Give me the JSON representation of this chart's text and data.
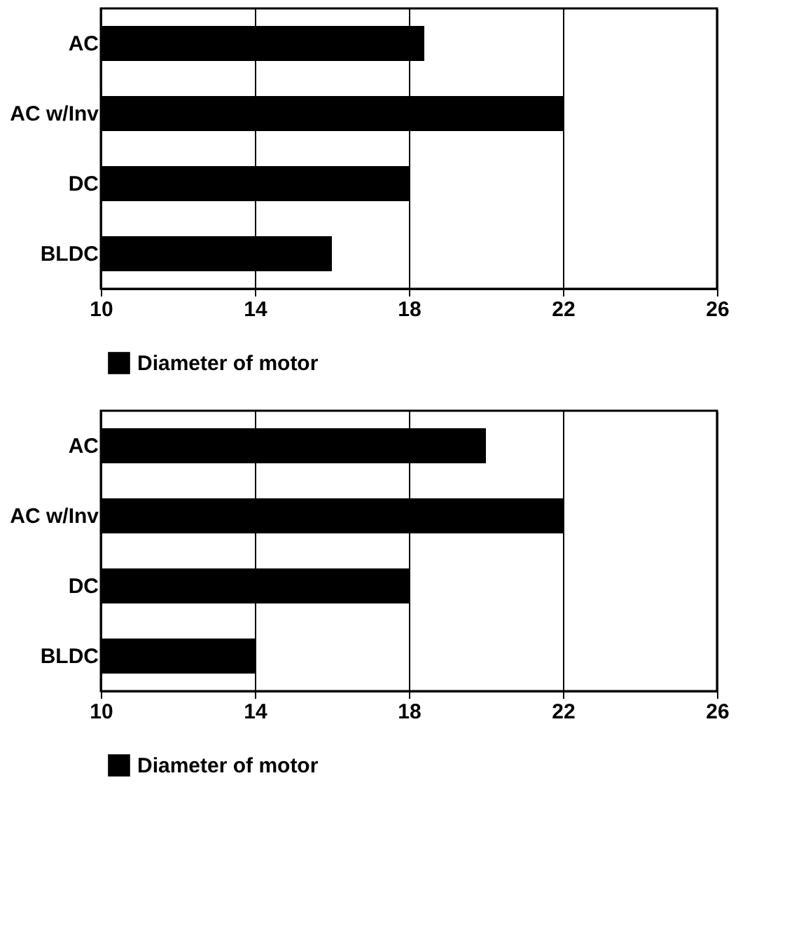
{
  "chart_data": [
    {
      "type": "bar",
      "orientation": "horizontal",
      "categories": [
        "AC",
        "AC w/Inv",
        "DC",
        "BLDC"
      ],
      "series": [
        {
          "name": "Diameter of motor",
          "color": "#000000",
          "values": [
            18.4,
            22,
            18,
            16
          ]
        }
      ],
      "xlim": [
        10,
        26
      ],
      "xticks": [
        10,
        14,
        18,
        22,
        26
      ],
      "grid": "x",
      "legend": "bottom"
    },
    {
      "type": "bar",
      "orientation": "horizontal",
      "categories": [
        "AC",
        "AC w/Inv",
        "DC",
        "BLDC"
      ],
      "series": [
        {
          "name": "Diameter of motor",
          "color": "#000000",
          "values": [
            20,
            22,
            18,
            14
          ]
        }
      ],
      "xlim": [
        10,
        26
      ],
      "xticks": [
        10,
        14,
        18,
        22,
        26
      ],
      "grid": "x",
      "legend": "bottom"
    }
  ]
}
